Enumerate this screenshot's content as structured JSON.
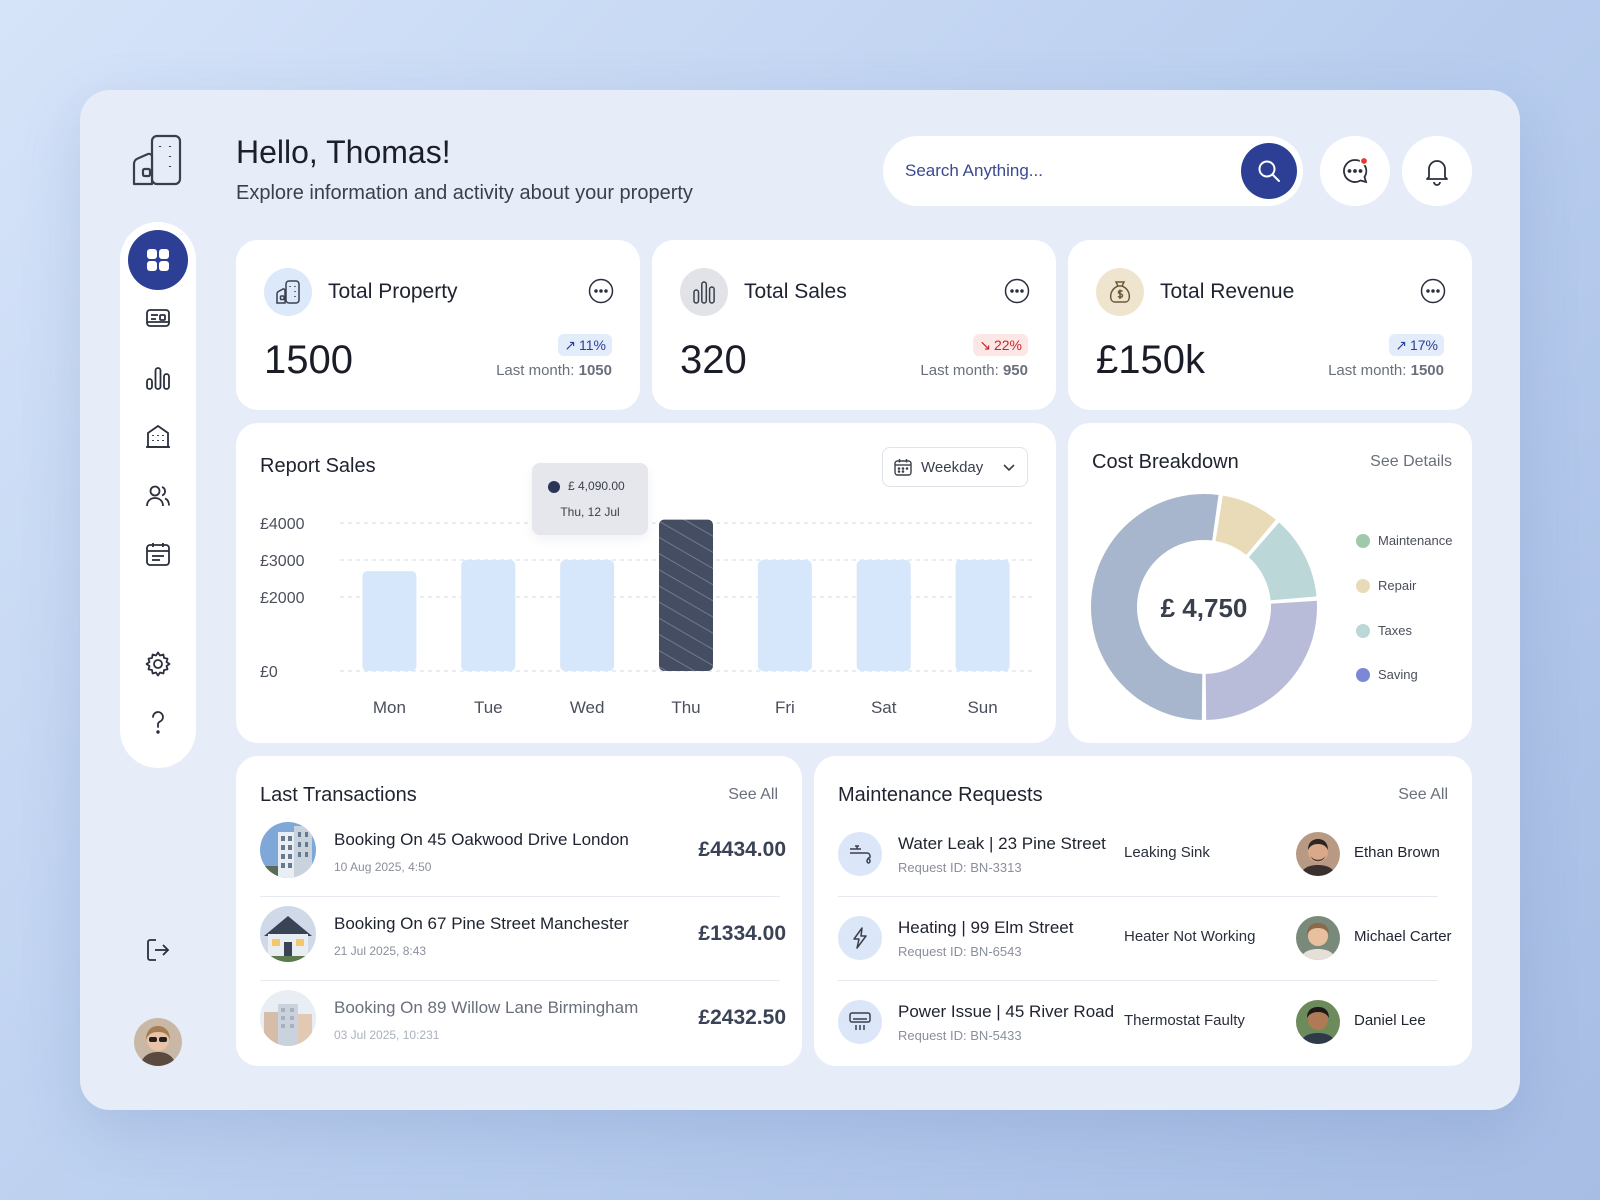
{
  "header": {
    "greeting": "Hello, Thomas!",
    "subtitle": "Explore information and activity about your property",
    "search_placeholder": "Search Anything..."
  },
  "sidebar": {
    "items": [
      {
        "icon": "dashboard-grid-icon",
        "active": true
      },
      {
        "icon": "id-card-icon",
        "active": false
      },
      {
        "icon": "bar-chart-icon",
        "active": false
      },
      {
        "icon": "building-icon",
        "active": false
      },
      {
        "icon": "users-icon",
        "active": false
      },
      {
        "icon": "calendar-icon",
        "active": false
      },
      {
        "icon": "settings-gear-icon",
        "active": false
      },
      {
        "icon": "help-question-icon",
        "active": false
      }
    ],
    "logout_icon": "logout-icon"
  },
  "stats": [
    {
      "label": "Total Property",
      "value": "1500",
      "change": "11%",
      "trend": "up",
      "last_label": "Last month:",
      "last_value": "1050",
      "icon": "property-icon"
    },
    {
      "label": "Total Sales",
      "value": "320",
      "change": "22%",
      "trend": "down",
      "last_label": "Last month:",
      "last_value": "950",
      "icon": "sales-bars-icon"
    },
    {
      "label": "Total Revenue",
      "value": "£150k",
      "change": "17%",
      "trend": "up",
      "last_label": "Last month:",
      "last_value": "1500",
      "icon": "money-bag-icon"
    }
  ],
  "report_sales": {
    "title": "Report Sales",
    "filter_label": "Weekday",
    "tooltip_value": "£ 4,090.00",
    "tooltip_date": "Thu, 12 Jul"
  },
  "cost_breakdown": {
    "title": "Cost Breakdown",
    "link": "See Details",
    "total": "£ 4,750"
  },
  "transactions": {
    "title": "Last Transactions",
    "link": "See All",
    "items": [
      {
        "title": "Booking On 45 Oakwood Drive London",
        "date": "10 Aug 2025, 4:50",
        "amount": "£4434.00"
      },
      {
        "title": "Booking On 67 Pine Street Manchester",
        "date": "21 Jul 2025, 8:43",
        "amount": "£1334.00"
      },
      {
        "title": "Booking On 89 Willow Lane Birmingham",
        "date": "03 Jul 2025, 10:231",
        "amount": "£2432.50"
      }
    ]
  },
  "maintenance": {
    "title": "Maintenance Requests",
    "link": "See All",
    "items": [
      {
        "title": "Water Leak | 23 Pine Street",
        "request_id": "Request ID: BN-3313",
        "issue": "Leaking Sink",
        "assignee": "Ethan Brown",
        "icon": "faucet-icon"
      },
      {
        "title": "Heating | 99 Elm Street",
        "request_id": "Request ID: BN-6543",
        "issue": "Heater Not Working",
        "assignee": "Michael Carter",
        "icon": "lightning-icon"
      },
      {
        "title": "Power Issue | 45 River Road",
        "request_id": "Request ID: BN-5433",
        "issue": "Thermostat Faulty",
        "assignee": "Daniel Lee",
        "icon": "air-conditioner-icon"
      }
    ]
  },
  "colors": {
    "primary": "#2c3f94",
    "bar": "#d6e6fb",
    "bar_active": "#454d63",
    "maintenance": "#9fc9a8",
    "repair": "#e9dbb8",
    "taxes": "#bcd7d7",
    "saving": "#7b88d6"
  },
  "chart_data": [
    {
      "type": "bar",
      "title": "Report Sales",
      "categories": [
        "Mon",
        "Tue",
        "Wed",
        "Thu",
        "Fri",
        "Sat",
        "Sun"
      ],
      "values": [
        2700,
        3000,
        3000,
        4090,
        3000,
        3000,
        3000
      ],
      "y_ticks": [
        "£4000",
        "£3000",
        "£2000",
        "£0"
      ],
      "ylim": [
        0,
        4000
      ],
      "grid": true,
      "highlight": "Thu"
    },
    {
      "type": "pie",
      "title": "Cost Breakdown",
      "labels": [
        "Maintenance",
        "Repair",
        "Taxes",
        "Saving"
      ],
      "values": [
        50,
        8.5,
        12,
        25
      ],
      "colors": [
        "#a7b6cc",
        "#e9dbb8",
        "#bcd7d7",
        "#b9bcd8"
      ],
      "legend_colors": [
        "#9fc9a8",
        "#e9dbb8",
        "#bcd7d7",
        "#7b88d6"
      ],
      "legend": "right"
    }
  ]
}
